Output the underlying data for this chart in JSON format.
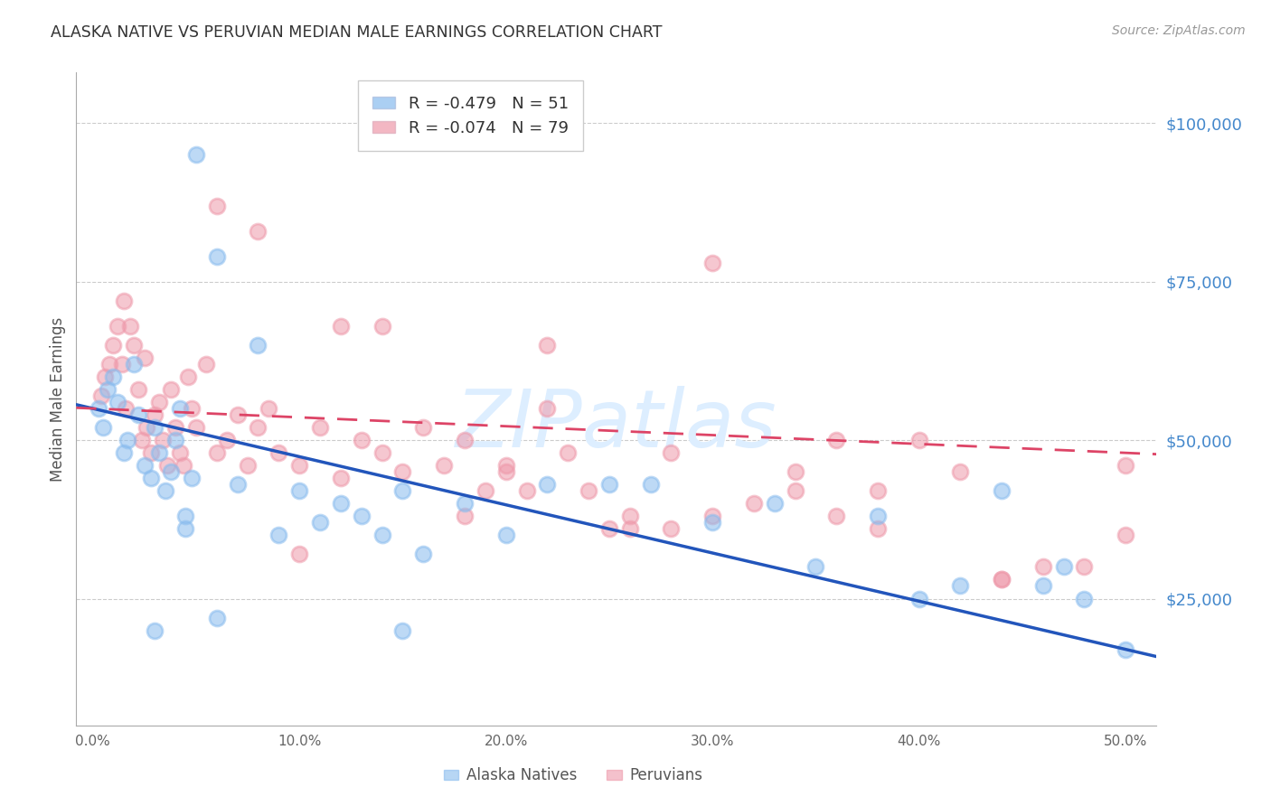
{
  "title": "ALASKA NATIVE VS PERUVIAN MEDIAN MALE EARNINGS CORRELATION CHART",
  "source": "Source: ZipAtlas.com",
  "ylabel": "Median Male Earnings",
  "xlabel_ticks": [
    "0.0%",
    "10.0%",
    "20.0%",
    "30.0%",
    "40.0%",
    "50.0%"
  ],
  "xlabel_vals": [
    0.0,
    0.1,
    0.2,
    0.3,
    0.4,
    0.5
  ],
  "ylabel_ticks": [
    25000,
    50000,
    75000,
    100000
  ],
  "ylabel_labels": [
    "$25,000",
    "$50,000",
    "$75,000",
    "$100,000"
  ],
  "xlim": [
    -0.008,
    0.515
  ],
  "ylim": [
    5000,
    108000
  ],
  "alaska_color": "#88bbee",
  "peruvian_color": "#ee99aa",
  "alaska_line_color": "#2255bb",
  "peruvian_line_color": "#dd4466",
  "watermark": "ZIPatlas",
  "watermark_color": "#ddeeff",
  "alaska_R": -0.479,
  "alaska_N": 51,
  "peruvian_R": -0.074,
  "peruvian_N": 79,
  "alaska_x": [
    0.003,
    0.005,
    0.007,
    0.01,
    0.012,
    0.015,
    0.017,
    0.02,
    0.022,
    0.025,
    0.028,
    0.03,
    0.032,
    0.035,
    0.038,
    0.04,
    0.042,
    0.045,
    0.048,
    0.05,
    0.06,
    0.07,
    0.08,
    0.09,
    0.1,
    0.11,
    0.12,
    0.13,
    0.14,
    0.15,
    0.16,
    0.18,
    0.2,
    0.22,
    0.25,
    0.27,
    0.3,
    0.33,
    0.35,
    0.38,
    0.4,
    0.42,
    0.44,
    0.46,
    0.47,
    0.48,
    0.5,
    0.03,
    0.045,
    0.06,
    0.15
  ],
  "alaska_y": [
    55000,
    52000,
    58000,
    60000,
    56000,
    48000,
    50000,
    62000,
    54000,
    46000,
    44000,
    52000,
    48000,
    42000,
    45000,
    50000,
    55000,
    38000,
    44000,
    95000,
    79000,
    43000,
    65000,
    35000,
    42000,
    37000,
    40000,
    38000,
    35000,
    42000,
    32000,
    40000,
    35000,
    43000,
    43000,
    43000,
    37000,
    40000,
    30000,
    38000,
    25000,
    27000,
    42000,
    27000,
    30000,
    25000,
    17000,
    20000,
    36000,
    22000,
    20000
  ],
  "peruvian_x": [
    0.004,
    0.006,
    0.008,
    0.01,
    0.012,
    0.014,
    0.016,
    0.018,
    0.02,
    0.022,
    0.024,
    0.026,
    0.028,
    0.03,
    0.032,
    0.034,
    0.036,
    0.038,
    0.04,
    0.042,
    0.044,
    0.046,
    0.048,
    0.05,
    0.055,
    0.06,
    0.065,
    0.07,
    0.075,
    0.08,
    0.085,
    0.09,
    0.1,
    0.11,
    0.12,
    0.13,
    0.14,
    0.15,
    0.16,
    0.17,
    0.18,
    0.19,
    0.2,
    0.21,
    0.22,
    0.23,
    0.24,
    0.25,
    0.26,
    0.28,
    0.3,
    0.32,
    0.34,
    0.36,
    0.38,
    0.4,
    0.42,
    0.44,
    0.46,
    0.48,
    0.5,
    0.06,
    0.08,
    0.12,
    0.14,
    0.22,
    0.3,
    0.36,
    0.28,
    0.18,
    0.26,
    0.38,
    0.44,
    0.2,
    0.1,
    0.34,
    0.5,
    0.015,
    0.025
  ],
  "peruvian_y": [
    57000,
    60000,
    62000,
    65000,
    68000,
    62000,
    55000,
    68000,
    65000,
    58000,
    50000,
    52000,
    48000,
    54000,
    56000,
    50000,
    46000,
    58000,
    52000,
    48000,
    46000,
    60000,
    55000,
    52000,
    62000,
    48000,
    50000,
    54000,
    46000,
    52000,
    55000,
    48000,
    46000,
    52000,
    44000,
    50000,
    48000,
    45000,
    52000,
    46000,
    50000,
    42000,
    46000,
    42000,
    55000,
    48000,
    42000,
    36000,
    38000,
    36000,
    38000,
    40000,
    42000,
    38000,
    36000,
    50000,
    45000,
    28000,
    30000,
    30000,
    35000,
    87000,
    83000,
    68000,
    68000,
    65000,
    78000,
    50000,
    48000,
    38000,
    36000,
    42000,
    28000,
    45000,
    32000,
    45000,
    46000,
    72000,
    63000
  ]
}
